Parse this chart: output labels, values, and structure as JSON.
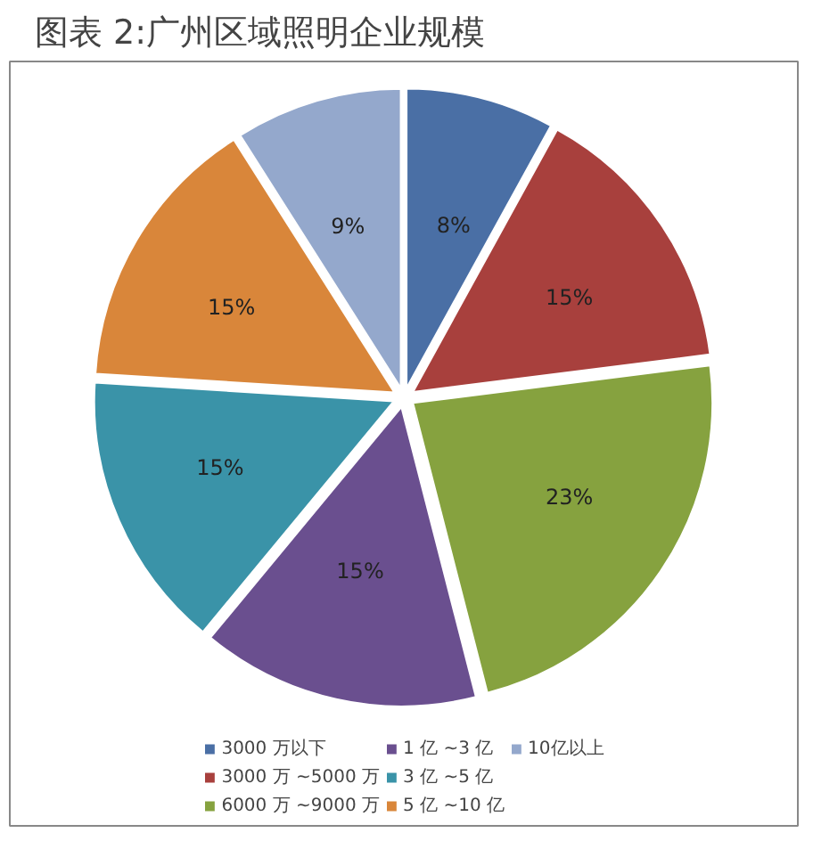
{
  "chart_data": {
    "type": "pie",
    "title": "图表 2:广州区域照明企业规模",
    "categories": [
      "3000 万以下",
      "3000 万 ~5000 万",
      "6000 万 ~9000 万",
      "1 亿 ~3 亿",
      "3 亿 ~5 亿",
      "5 亿 ~10 亿",
      "10亿以上"
    ],
    "values": [
      8,
      15,
      23,
      15,
      15,
      15,
      9
    ],
    "colors": [
      "#4a6fa5",
      "#a8403d",
      "#86a23f",
      "#6a4f8f",
      "#3a93a8",
      "#d9863a",
      "#94a8cc"
    ],
    "value_labels": [
      "8%",
      "15%",
      "23%",
      "15%",
      "15%",
      "15%",
      "9%"
    ],
    "legend": "bottom"
  }
}
